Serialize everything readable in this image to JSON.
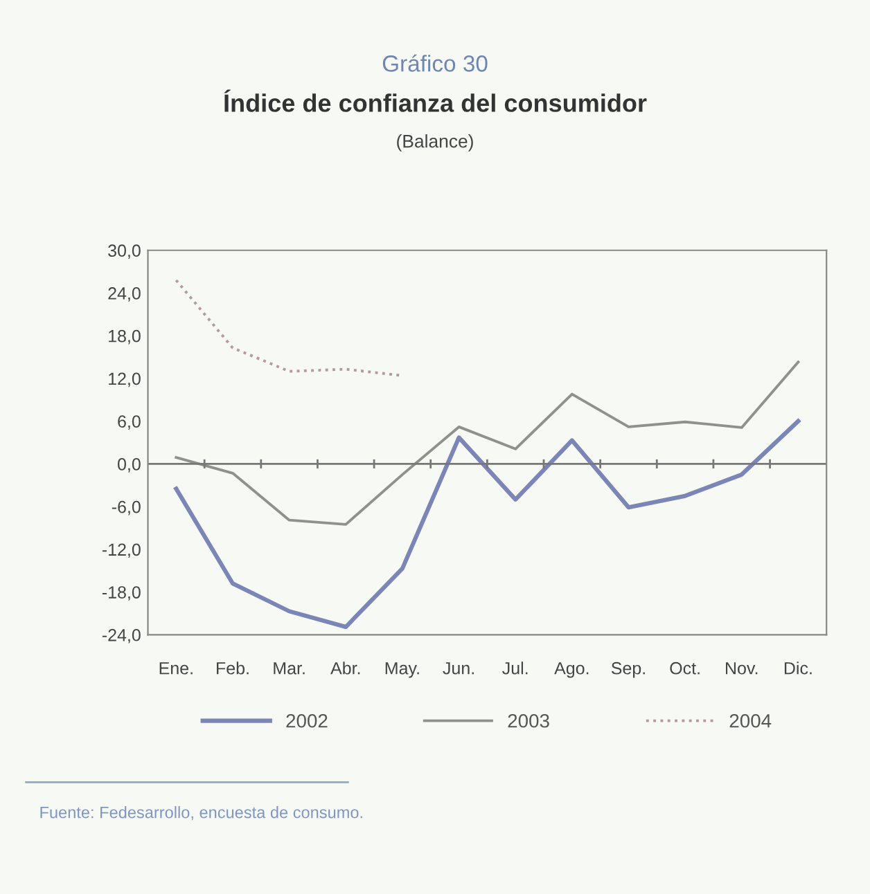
{
  "chart_data": {
    "type": "line",
    "title": "Índice de confianza del consumidor",
    "subtitle": "(Balance)",
    "annotations": [
      "Gráfico 30",
      "Fuente: Fedesarrollo, encuesta de consumo."
    ],
    "categories": [
      "Ene.",
      "Feb.",
      "Mar.",
      "Abr.",
      "May.",
      "Jun.",
      "Jul.",
      "Ago.",
      "Sep.",
      "Oct.",
      "Nov.",
      "Dic."
    ],
    "series": [
      {
        "name": "2002",
        "color": "#7b86b6",
        "line_style": "solid",
        "values": [
          -3.5,
          -16.8,
          -20.7,
          -22.9,
          -14.7,
          3.7,
          -5.0,
          3.3,
          -6.1,
          -4.5,
          -1.5,
          6.0
        ]
      },
      {
        "name": "2003",
        "color": "#8e918c",
        "line_style": "solid",
        "values": [
          0.9,
          -1.3,
          -7.9,
          -8.5,
          -1.5,
          5.2,
          2.1,
          9.8,
          5.2,
          5.9,
          5.1,
          14.3
        ]
      },
      {
        "name": "2004",
        "color": "#b59a9a",
        "line_style": "dotted",
        "values": [
          25.8,
          16.3,
          13.0,
          13.3,
          12.4,
          null,
          null,
          null,
          null,
          null,
          null,
          null
        ]
      }
    ],
    "ylim": [
      -24,
      30
    ],
    "yticks": [
      {
        "value": 30,
        "label": "30,0"
      },
      {
        "value": 24,
        "label": "24,0"
      },
      {
        "value": 18,
        "label": "18,0"
      },
      {
        "value": 12,
        "label": "12,0"
      },
      {
        "value": 6,
        "label": "6,0"
      },
      {
        "value": 0,
        "label": "0,0"
      },
      {
        "value": -6,
        "label": "-6,0"
      },
      {
        "value": -12,
        "label": "-12,0"
      },
      {
        "value": -18,
        "label": "-18,0"
      },
      {
        "value": -24,
        "label": "-24,0"
      }
    ],
    "ref_lines": [
      {
        "axis": "y",
        "value": 0,
        "color": "#777777"
      }
    ],
    "legend": "bottom",
    "grid": false,
    "marker": "none"
  }
}
